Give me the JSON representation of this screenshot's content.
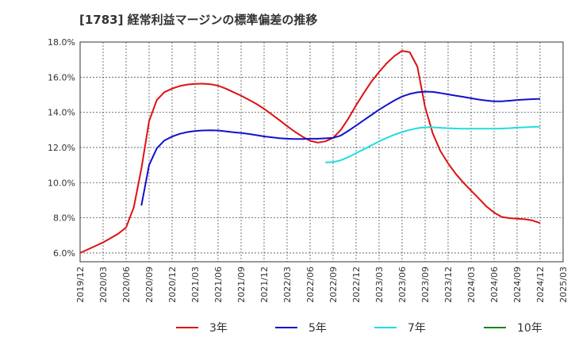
{
  "chart_data": {
    "type": "line",
    "title": "[1783]  経常利益マージンの標準偏差の推移",
    "xlabel": "",
    "ylabel": "",
    "ylim": [
      5.5,
      18.0
    ],
    "xlim": [
      "2019/12",
      "2025/03"
    ],
    "grid": true,
    "legend_position": "bottom",
    "x_ticks": [
      "2019/12",
      "2020/03",
      "2020/06",
      "2020/09",
      "2020/12",
      "2021/03",
      "2021/06",
      "2021/09",
      "2021/12",
      "2022/03",
      "2022/06",
      "2022/09",
      "2022/12",
      "2023/03",
      "2023/06",
      "2023/09",
      "2023/12",
      "2024/03",
      "2024/06",
      "2024/09",
      "2024/12",
      "2025/03"
    ],
    "y_ticks": [
      {
        "value": 6,
        "label": "6.0%"
      },
      {
        "value": 8,
        "label": "8.0%"
      },
      {
        "value": 10,
        "label": "10.0%"
      },
      {
        "value": 12,
        "label": "12.0%"
      },
      {
        "value": 14,
        "label": "14.0%"
      },
      {
        "value": 16,
        "label": "16.0%"
      },
      {
        "value": 18,
        "label": "18.0%"
      }
    ],
    "series": [
      {
        "name": "3年",
        "color": "#dd1111",
        "points": [
          [
            "2019/12",
            6.0
          ],
          [
            "2020/01",
            6.2
          ],
          [
            "2020/02",
            6.4
          ],
          [
            "2020/03",
            6.6
          ],
          [
            "2020/04",
            6.85
          ],
          [
            "2020/05",
            7.1
          ],
          [
            "2020/06",
            7.45
          ],
          [
            "2020/07",
            8.6
          ],
          [
            "2020/08",
            10.8
          ],
          [
            "2020/09",
            13.5
          ],
          [
            "2020/10",
            14.7
          ],
          [
            "2020/11",
            15.15
          ],
          [
            "2020/12",
            15.35
          ],
          [
            "2021/01",
            15.5
          ],
          [
            "2021/02",
            15.58
          ],
          [
            "2021/03",
            15.62
          ],
          [
            "2021/04",
            15.63
          ],
          [
            "2021/05",
            15.6
          ],
          [
            "2021/06",
            15.52
          ],
          [
            "2021/07",
            15.35
          ],
          [
            "2021/08",
            15.15
          ],
          [
            "2021/09",
            14.95
          ],
          [
            "2021/10",
            14.72
          ],
          [
            "2021/11",
            14.48
          ],
          [
            "2021/12",
            14.2
          ],
          [
            "2022/01",
            13.88
          ],
          [
            "2022/02",
            13.56
          ],
          [
            "2022/03",
            13.22
          ],
          [
            "2022/04",
            12.9
          ],
          [
            "2022/05",
            12.62
          ],
          [
            "2022/06",
            12.38
          ],
          [
            "2022/07",
            12.28
          ],
          [
            "2022/08",
            12.35
          ],
          [
            "2022/09",
            12.55
          ],
          [
            "2022/10",
            13.0
          ],
          [
            "2022/11",
            13.65
          ],
          [
            "2022/12",
            14.4
          ],
          [
            "2023/01",
            15.1
          ],
          [
            "2023/02",
            15.75
          ],
          [
            "2023/03",
            16.3
          ],
          [
            "2023/04",
            16.8
          ],
          [
            "2023/05",
            17.2
          ],
          [
            "2023/06",
            17.5
          ],
          [
            "2023/07",
            17.42
          ],
          [
            "2023/08",
            16.6
          ],
          [
            "2023/09",
            14.3
          ],
          [
            "2023/10",
            12.8
          ],
          [
            "2023/11",
            11.8
          ],
          [
            "2023/12",
            11.1
          ],
          [
            "2024/01",
            10.5
          ],
          [
            "2024/02",
            10.0
          ],
          [
            "2024/03",
            9.55
          ],
          [
            "2024/04",
            9.1
          ],
          [
            "2024/05",
            8.65
          ],
          [
            "2024/06",
            8.3
          ],
          [
            "2024/07",
            8.05
          ],
          [
            "2024/08",
            7.98
          ],
          [
            "2024/09",
            7.95
          ],
          [
            "2024/10",
            7.92
          ],
          [
            "2024/11",
            7.85
          ],
          [
            "2024/12",
            7.7
          ]
        ]
      },
      {
        "name": "5年",
        "color": "#1111cc",
        "points": [
          [
            "2020/08",
            8.7
          ],
          [
            "2020/09",
            11.0
          ],
          [
            "2020/10",
            11.95
          ],
          [
            "2020/11",
            12.4
          ],
          [
            "2020/12",
            12.62
          ],
          [
            "2021/01",
            12.78
          ],
          [
            "2021/02",
            12.88
          ],
          [
            "2021/03",
            12.94
          ],
          [
            "2021/04",
            12.97
          ],
          [
            "2021/05",
            12.98
          ],
          [
            "2021/06",
            12.97
          ],
          [
            "2021/07",
            12.92
          ],
          [
            "2021/08",
            12.87
          ],
          [
            "2021/09",
            12.83
          ],
          [
            "2021/10",
            12.77
          ],
          [
            "2021/11",
            12.7
          ],
          [
            "2021/12",
            12.63
          ],
          [
            "2022/01",
            12.58
          ],
          [
            "2022/02",
            12.53
          ],
          [
            "2022/03",
            12.5
          ],
          [
            "2022/04",
            12.48
          ],
          [
            "2022/05",
            12.48
          ],
          [
            "2022/06",
            12.5
          ],
          [
            "2022/07",
            12.5
          ],
          [
            "2022/08",
            12.52
          ],
          [
            "2022/09",
            12.55
          ],
          [
            "2022/10",
            12.68
          ],
          [
            "2022/11",
            12.95
          ],
          [
            "2022/12",
            13.25
          ],
          [
            "2023/01",
            13.55
          ],
          [
            "2023/02",
            13.85
          ],
          [
            "2023/03",
            14.15
          ],
          [
            "2023/04",
            14.42
          ],
          [
            "2023/05",
            14.68
          ],
          [
            "2023/06",
            14.9
          ],
          [
            "2023/07",
            15.05
          ],
          [
            "2023/08",
            15.14
          ],
          [
            "2023/09",
            15.18
          ],
          [
            "2023/10",
            15.16
          ],
          [
            "2023/11",
            15.1
          ],
          [
            "2023/12",
            15.02
          ],
          [
            "2024/01",
            14.95
          ],
          [
            "2024/02",
            14.88
          ],
          [
            "2024/03",
            14.8
          ],
          [
            "2024/04",
            14.73
          ],
          [
            "2024/05",
            14.67
          ],
          [
            "2024/06",
            14.63
          ],
          [
            "2024/07",
            14.63
          ],
          [
            "2024/08",
            14.66
          ],
          [
            "2024/09",
            14.7
          ],
          [
            "2024/10",
            14.73
          ],
          [
            "2024/11",
            14.75
          ],
          [
            "2024/12",
            14.77
          ]
        ]
      },
      {
        "name": "7年",
        "color": "#22dddd",
        "points": [
          [
            "2022/08",
            11.15
          ],
          [
            "2022/09",
            11.17
          ],
          [
            "2022/10",
            11.27
          ],
          [
            "2022/11",
            11.45
          ],
          [
            "2022/12",
            11.68
          ],
          [
            "2023/01",
            11.9
          ],
          [
            "2023/02",
            12.12
          ],
          [
            "2023/03",
            12.35
          ],
          [
            "2023/04",
            12.55
          ],
          [
            "2023/05",
            12.73
          ],
          [
            "2023/06",
            12.88
          ],
          [
            "2023/07",
            13.0
          ],
          [
            "2023/08",
            13.1
          ],
          [
            "2023/09",
            13.15
          ],
          [
            "2023/10",
            13.15
          ],
          [
            "2023/11",
            13.12
          ],
          [
            "2023/12",
            13.1
          ],
          [
            "2024/01",
            13.08
          ],
          [
            "2024/02",
            13.07
          ],
          [
            "2024/03",
            13.07
          ],
          [
            "2024/04",
            13.07
          ],
          [
            "2024/05",
            13.07
          ],
          [
            "2024/06",
            13.07
          ],
          [
            "2024/07",
            13.08
          ],
          [
            "2024/08",
            13.1
          ],
          [
            "2024/09",
            13.13
          ],
          [
            "2024/10",
            13.15
          ],
          [
            "2024/11",
            13.17
          ],
          [
            "2024/12",
            13.18
          ]
        ]
      },
      {
        "name": "10年",
        "color": "#118811",
        "points": []
      }
    ]
  }
}
